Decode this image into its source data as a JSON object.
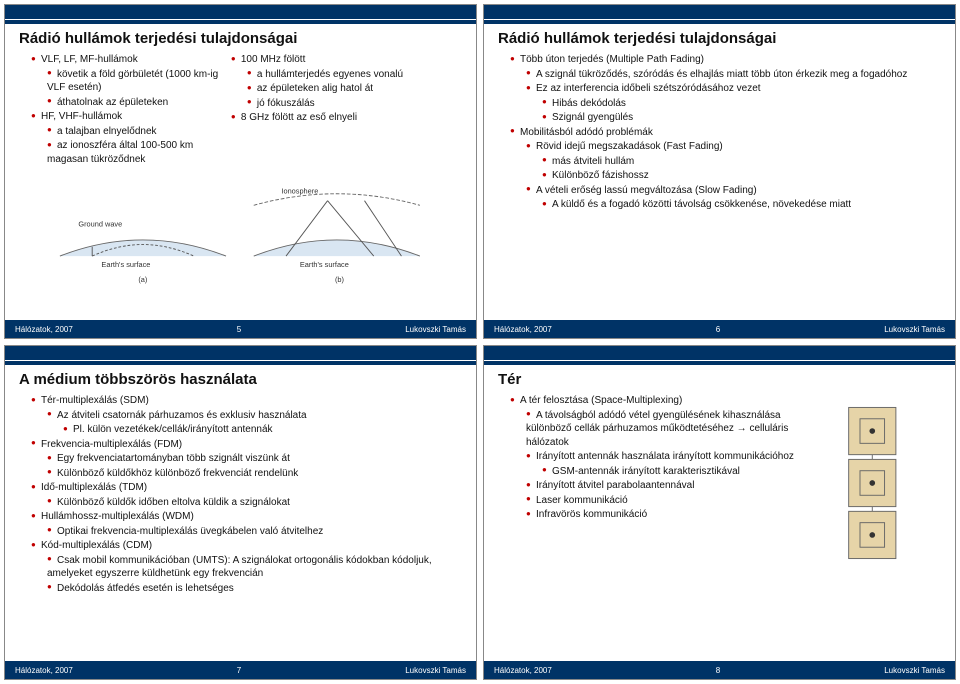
{
  "colors": {
    "bar": "#003366",
    "bullet": "#c00000",
    "text": "#111111",
    "diagram_fill": "#d9e6f2",
    "diagram_stroke": "#666666"
  },
  "footer": {
    "left": "Hálózatok, 2007",
    "right": "Lukovszki Tamás"
  },
  "slide5": {
    "title": "Rádió hullámok terjedési tulajdonságai",
    "page": "5",
    "colA": [
      [
        1,
        "VLF, LF, MF-hullámok"
      ],
      [
        2,
        "követik a föld görbületét (1000 km-ig VLF esetén)"
      ],
      [
        2,
        "áthatolnak az épületeken"
      ],
      [
        1,
        "HF, VHF-hullámok"
      ],
      [
        2,
        "a talajban elnyelődnek"
      ],
      [
        2,
        "az ionoszféra által 100-500 km magasan tükröződnek"
      ]
    ],
    "colB": [
      [
        1,
        "100 MHz fölött"
      ],
      [
        2,
        "a hullámterjedés egyenes vonalú"
      ],
      [
        2,
        "az épületeken alig hatol át"
      ],
      [
        2,
        "jó fókuszálás"
      ],
      [
        1,
        "8 GHz fölött az eső elnyeli"
      ]
    ],
    "diagram": {
      "labels": {
        "ionosphere": "Ionosphere",
        "ground_wave": "Ground wave",
        "earth_a": "Earth's surface",
        "earth_b": "Earth's surface",
        "a": "(a)",
        "b": "(b)"
      }
    }
  },
  "slide6": {
    "title": "Rádió hullámok terjedési tulajdonságai",
    "page": "6",
    "items": [
      [
        1,
        "Több úton terjedés (Multiple Path Fading)"
      ],
      [
        2,
        "A szignál tükröződés, szóródás és elhajlás miatt több úton érkezik meg a fogadóhoz"
      ],
      [
        2,
        "Ez az interferencia időbeli szétszóródásához vezet"
      ],
      [
        3,
        "Hibás dekódolás"
      ],
      [
        3,
        "Szignál gyengülés"
      ],
      [
        1,
        "Mobilitásból adódó problémák"
      ],
      [
        2,
        "Rövid idejű megszakadások (Fast Fading)"
      ],
      [
        3,
        "más átviteli hullám"
      ],
      [
        3,
        "Különböző fázishossz"
      ],
      [
        2,
        "A vételi erőség lassú megváltozása (Slow Fading)"
      ],
      [
        3,
        "A küldő és a fogadó közötti távolság csökkenése, növekedése miatt"
      ]
    ]
  },
  "slide7": {
    "title": "A médium többszörös használata",
    "page": "7",
    "items": [
      [
        1,
        "Tér-multiplexálás (SDM)"
      ],
      [
        2,
        "Az átviteli csatornák párhuzamos és exklusiv használata"
      ],
      [
        3,
        "Pl. külön vezetékek/cellák/irányított antennák"
      ],
      [
        1,
        "Frekvencia-multiplexálás (FDM)"
      ],
      [
        2,
        "Egy frekvenciatartományban több szignált viszünk át"
      ],
      [
        2,
        "Különböző küldőkhöz különböző frekvenciát rendelünk"
      ],
      [
        1,
        "Idő-multiplexálás (TDM)"
      ],
      [
        2,
        "Különböző küldők időben eltolva küldik a szignálokat"
      ],
      [
        1,
        "Hullámhossz-multiplexálás (WDM)"
      ],
      [
        2,
        "Optikai frekvencia-multiplexálás üvegkábelen való átvitelhez"
      ],
      [
        1,
        "Kód-multiplexálás (CDM)"
      ],
      [
        2,
        "Csak mobil kommunikációban (UMTS): A szignálokat ortogonális kódokban kódoljuk, amelyeket egyszerre küldhetünk egy frekvencián"
      ],
      [
        2,
        "Dekódolás átfedés esetén is lehetséges"
      ]
    ]
  },
  "slide8": {
    "title": "Tér",
    "page": "8",
    "items": [
      [
        1,
        "A tér felosztása (Space-Multiplexing)"
      ],
      [
        2,
        "A távolságból adódó vétel gyengülésének kihasználása különböző cellák párhuzamos működtetéséhez → celluláris hálózatok"
      ],
      [
        2,
        "Irányított antennák használata irányított kommunikációhoz"
      ],
      [
        3,
        "GSM-antennák irányított karakterisztikával"
      ],
      [
        2,
        "Irányított átvitel parabolaantennával"
      ],
      [
        2,
        "Laser kommunikáció"
      ],
      [
        2,
        "Infravörös kommunikáció"
      ]
    ],
    "diagram": {
      "colors": [
        "#e6d4a8",
        "#e6d4a8",
        "#e6d4a8"
      ],
      "stroke": "#666666",
      "dot": "#333333"
    }
  }
}
